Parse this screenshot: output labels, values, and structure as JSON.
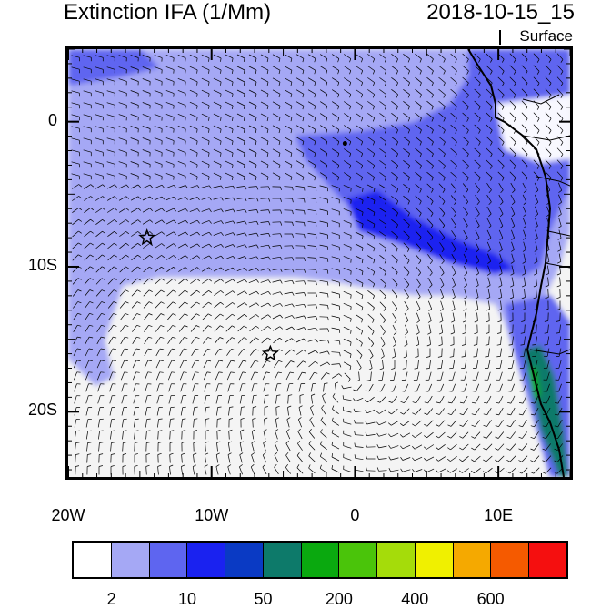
{
  "title": "Extinction IFA (1/Mm)",
  "datetime": "2018-10-15_15",
  "level": "Surface",
  "map": {
    "lon_range": [
      -20,
      15
    ],
    "lat_range": [
      -24.5,
      5
    ],
    "x_ticks": [
      "20W",
      "10W",
      "0",
      "10E"
    ],
    "y_ticks": [
      "0",
      "10S",
      "20S"
    ],
    "markers": [
      {
        "name": "star-marker-1",
        "lon": -14.5,
        "lat": -8
      },
      {
        "name": "star-marker-2",
        "lon": -5.9,
        "lat": -16
      },
      {
        "name": "circle-marker",
        "lon": -0.7,
        "lat": -1.5
      }
    ],
    "features": [
      "wind-vector-field",
      "coastline",
      "aerosol-extinction-shading"
    ]
  },
  "colorbar": {
    "colors": [
      "#ffffff",
      "#a5a8f5",
      "#5e65f0",
      "#1a22f0",
      "#0a3ac4",
      "#0d7a6a",
      "#0aa90f",
      "#4ac40a",
      "#a5dc0a",
      "#f0f000",
      "#f5a900",
      "#f55a00",
      "#f50f0f"
    ],
    "labels": [
      "2",
      "10",
      "50",
      "200",
      "400",
      "600"
    ]
  }
}
